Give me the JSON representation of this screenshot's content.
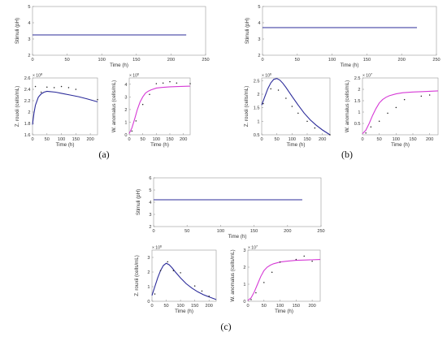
{
  "colors": {
    "ph_line": "#2b2b9a",
    "z_rouxii": "#2b2b9a",
    "w_anomalus": "#d63ad6",
    "points": "#222222",
    "axis": "#9a9a9a"
  },
  "chart_data": [
    {
      "id": "a-ph",
      "panel": "(a)",
      "type": "line",
      "xlabel": "Time (h)",
      "ylabel": "Stimuli (pH)",
      "xlim": [
        0,
        250
      ],
      "ylim": [
        2,
        5
      ],
      "xticks": [
        0,
        50,
        100,
        150,
        200,
        250
      ],
      "yticks": [
        2,
        3,
        4,
        5
      ],
      "series": [
        {
          "x": [
            0,
            222
          ],
          "y": [
            3.25,
            3.25
          ]
        }
      ]
    },
    {
      "id": "a-z",
      "panel": "(a)",
      "type": "line",
      "xlabel": "Time (h)",
      "ylabel": "Z. rouxii (cells/mL)",
      "multiplier": "× 10^8",
      "xlim": [
        0,
        225
      ],
      "ylim": [
        1.6,
        2.6
      ],
      "xticks": [
        0,
        50,
        100,
        150,
        200
      ],
      "yticks": [
        1.6,
        1.8,
        2.0,
        2.2,
        2.4,
        2.6
      ],
      "ytick_labels": [
        "1.6",
        "1.8",
        "2",
        "2.2",
        "2.4",
        "2.6"
      ],
      "series": [
        {
          "x": [
            0,
            5,
            10,
            20,
            30,
            40,
            50,
            60,
            80,
            100,
            130,
            160,
            190,
            225
          ],
          "y": [
            1.78,
            1.98,
            2.12,
            2.26,
            2.32,
            2.35,
            2.365,
            2.36,
            2.35,
            2.33,
            2.3,
            2.27,
            2.23,
            2.18
          ]
        }
      ],
      "points": {
        "x": [
          10,
          30,
          50,
          75,
          100,
          125,
          150,
          225
        ],
        "y": [
          2.45,
          2.35,
          2.44,
          2.43,
          2.45,
          2.43,
          2.4,
          2.22
        ]
      }
    },
    {
      "id": "a-w",
      "panel": "(a)",
      "type": "line",
      "xlabel": "Time (h)",
      "ylabel": "W. anomalus (cells/mL)",
      "multiplier": "× 10^6",
      "xlim": [
        0,
        225
      ],
      "ylim": [
        0,
        4.5
      ],
      "xticks": [
        0,
        50,
        100,
        150,
        200
      ],
      "yticks": [
        0,
        1,
        2,
        3,
        4
      ],
      "series": [
        {
          "x": [
            0,
            10,
            20,
            30,
            40,
            50,
            60,
            70,
            80,
            100,
            120,
            150,
            180,
            225
          ],
          "y": [
            0.1,
            0.55,
            1.25,
            2.0,
            2.6,
            3.0,
            3.3,
            3.45,
            3.55,
            3.7,
            3.75,
            3.8,
            3.82,
            3.85
          ]
        }
      ],
      "points": {
        "x": [
          10,
          25,
          50,
          75,
          100,
          125,
          150,
          175,
          225
        ],
        "y": [
          0.3,
          1.1,
          2.4,
          3.2,
          4.05,
          4.1,
          4.2,
          4.1,
          4.05
        ]
      }
    },
    {
      "id": "b-ph",
      "panel": "(b)",
      "type": "line",
      "xlabel": "Time (h)",
      "ylabel": "Stimuli (pH)",
      "xlim": [
        0,
        250
      ],
      "ylim": [
        2,
        5
      ],
      "xticks": [
        0,
        50,
        100,
        150,
        200,
        250
      ],
      "yticks": [
        2,
        3,
        4,
        5
      ],
      "series": [
        {
          "x": [
            0,
            222
          ],
          "y": [
            3.7,
            3.7
          ]
        }
      ]
    },
    {
      "id": "b-z",
      "panel": "(b)",
      "type": "line",
      "xlabel": "Time (h)",
      "ylabel": "Z. rouxii (cells/mL)",
      "multiplier": "× 10^6",
      "xlim": [
        0,
        225
      ],
      "ylim": [
        0.5,
        2.6
      ],
      "xticks": [
        0,
        50,
        100,
        150,
        200
      ],
      "yticks": [
        0.5,
        1.0,
        1.5,
        2.0,
        2.5
      ],
      "ytick_labels": [
        "0.5",
        "1",
        "1.5",
        "2",
        "2.5"
      ],
      "series": [
        {
          "x": [
            0,
            10,
            20,
            30,
            40,
            50,
            60,
            70,
            80,
            100,
            120,
            140,
            160,
            180,
            200,
            225
          ],
          "y": [
            1.6,
            1.9,
            2.2,
            2.42,
            2.55,
            2.58,
            2.52,
            2.4,
            2.25,
            1.92,
            1.6,
            1.3,
            1.05,
            0.85,
            0.68,
            0.5
          ]
        }
      ],
      "points": {
        "x": [
          5,
          30,
          55,
          80,
          100,
          120,
          150,
          175,
          225
        ],
        "y": [
          1.65,
          2.2,
          2.15,
          1.85,
          1.55,
          1.3,
          1.0,
          0.75,
          0.5
        ]
      }
    },
    {
      "id": "b-w",
      "panel": "(b)",
      "type": "line",
      "xlabel": "Time (h)",
      "ylabel": "W. anomalus (cells/mL)",
      "multiplier": "× 10^7",
      "xlim": [
        0,
        225
      ],
      "ylim": [
        0,
        2.5
      ],
      "xticks": [
        0,
        50,
        100,
        150,
        200
      ],
      "yticks": [
        0.5,
        1.0,
        1.5,
        2.0,
        2.5
      ],
      "ytick_labels": [
        "0.5",
        "1",
        "1.5",
        "2",
        "2.5"
      ],
      "series": [
        {
          "x": [
            0,
            10,
            20,
            30,
            40,
            50,
            60,
            70,
            80,
            100,
            120,
            150,
            180,
            225
          ],
          "y": [
            0.05,
            0.2,
            0.5,
            0.85,
            1.15,
            1.4,
            1.55,
            1.65,
            1.72,
            1.8,
            1.85,
            1.88,
            1.9,
            1.93
          ]
        }
      ],
      "points": {
        "x": [
          10,
          25,
          50,
          75,
          100,
          125,
          175,
          200
        ],
        "y": [
          0.08,
          0.35,
          0.6,
          0.95,
          1.2,
          1.55,
          1.7,
          1.75
        ]
      }
    },
    {
      "id": "c-ph",
      "panel": "(c)",
      "type": "line",
      "xlabel": "Time (h)",
      "ylabel": "Stimuli (pH)",
      "xlim": [
        0,
        250
      ],
      "ylim": [
        2,
        6
      ],
      "xticks": [
        0,
        50,
        100,
        150,
        200,
        250
      ],
      "yticks": [
        2,
        3,
        4,
        5,
        6
      ],
      "series": [
        {
          "x": [
            0,
            222
          ],
          "y": [
            4.2,
            4.2
          ]
        }
      ]
    },
    {
      "id": "c-z",
      "panel": "(c)",
      "type": "line",
      "xlabel": "Time (h)",
      "ylabel": "Z. rouxii (cells/mL)",
      "multiplier": "× 10^6",
      "xlim": [
        0,
        225
      ],
      "ylim": [
        0,
        3.5
      ],
      "xticks": [
        0,
        50,
        100,
        150,
        200
      ],
      "yticks": [
        0,
        1,
        2,
        3
      ],
      "series": [
        {
          "x": [
            0,
            10,
            20,
            30,
            40,
            50,
            60,
            70,
            80,
            100,
            120,
            140,
            160,
            180,
            200,
            225
          ],
          "y": [
            0.4,
            1.0,
            1.6,
            2.1,
            2.45,
            2.6,
            2.5,
            2.3,
            2.05,
            1.6,
            1.2,
            0.9,
            0.65,
            0.45,
            0.3,
            0.12
          ]
        }
      ],
      "points": {
        "x": [
          10,
          30,
          55,
          75,
          100,
          150,
          175,
          200
        ],
        "y": [
          0.5,
          2.1,
          2.7,
          2.1,
          1.95,
          1.05,
          0.7,
          0.35
        ]
      }
    },
    {
      "id": "c-w",
      "panel": "(c)",
      "type": "line",
      "xlabel": "Time (h)",
      "ylabel": "W. anomalus (cells/mL)",
      "multiplier": "× 10^7",
      "xlim": [
        0,
        225
      ],
      "ylim": [
        0,
        3
      ],
      "xticks": [
        0,
        50,
        100,
        150,
        200
      ],
      "yticks": [
        0,
        1,
        2,
        3
      ],
      "series": [
        {
          "x": [
            0,
            10,
            20,
            30,
            40,
            50,
            60,
            70,
            80,
            100,
            120,
            150,
            180,
            225
          ],
          "y": [
            0.05,
            0.2,
            0.55,
            1.0,
            1.45,
            1.8,
            2.0,
            2.12,
            2.2,
            2.3,
            2.35,
            2.4,
            2.42,
            2.45
          ]
        }
      ],
      "points": {
        "x": [
          10,
          25,
          50,
          75,
          100,
          150,
          175,
          200
        ],
        "y": [
          0.1,
          0.5,
          1.1,
          1.7,
          2.3,
          2.45,
          2.65,
          2.35
        ]
      }
    }
  ],
  "panel_labels": [
    "(a)",
    "(b)",
    "(c)"
  ]
}
